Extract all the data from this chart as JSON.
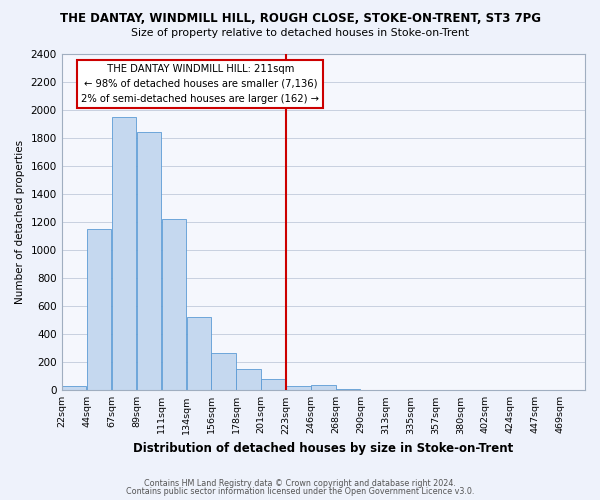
{
  "title": "THE DANTAY, WINDMILL HILL, ROUGH CLOSE, STOKE-ON-TRENT, ST3 7PG",
  "subtitle": "Size of property relative to detached houses in Stoke-on-Trent",
  "xlabel": "Distribution of detached houses by size in Stoke-on-Trent",
  "ylabel": "Number of detached properties",
  "bin_labels": [
    "22sqm",
    "44sqm",
    "67sqm",
    "89sqm",
    "111sqm",
    "134sqm",
    "156sqm",
    "178sqm",
    "201sqm",
    "223sqm",
    "246sqm",
    "268sqm",
    "290sqm",
    "313sqm",
    "335sqm",
    "357sqm",
    "380sqm",
    "402sqm",
    "424sqm",
    "447sqm",
    "469sqm"
  ],
  "bar_values": [
    30,
    1150,
    1950,
    1840,
    1220,
    520,
    265,
    150,
    80,
    30,
    40,
    10,
    5,
    3,
    2,
    2,
    2,
    2,
    2,
    2,
    2
  ],
  "bar_color": "#c5d8ef",
  "bar_edge_color": "#5b9bd5",
  "vline_color": "#cc0000",
  "annotation_title": "THE DANTAY WINDMILL HILL: 211sqm",
  "annotation_line1": "← 98% of detached houses are smaller (7,136)",
  "annotation_line2": "2% of semi-detached houses are larger (162) →",
  "ylim": [
    0,
    2400
  ],
  "yticks": [
    0,
    200,
    400,
    600,
    800,
    1000,
    1200,
    1400,
    1600,
    1800,
    2000,
    2200,
    2400
  ],
  "footnote1": "Contains HM Land Registry data © Crown copyright and database right 2024.",
  "footnote2": "Contains public sector information licensed under the Open Government Licence v3.0.",
  "bg_color": "#eef2fb",
  "plot_bg_color": "#f5f7fd",
  "grid_color": "#c8d0e0"
}
